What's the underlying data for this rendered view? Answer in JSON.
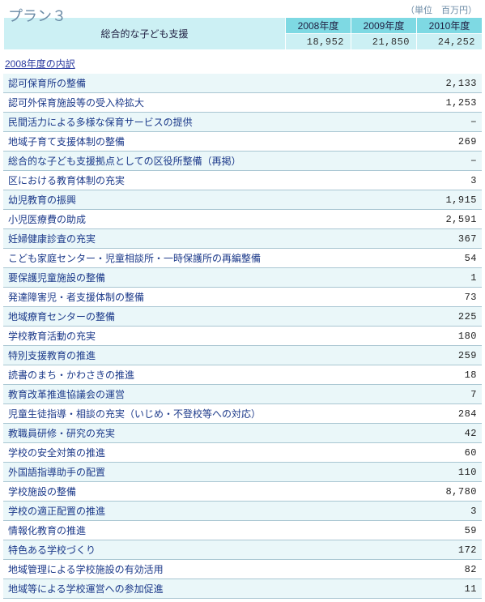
{
  "unit_label": "（単位　百万円）",
  "plan_title": "プラン３",
  "header": {
    "plan_label": "総合的な子ども支援",
    "years": [
      "2008年度",
      "2009年度",
      "2010年度"
    ],
    "totals": [
      "18,952",
      "21,850",
      "24,252"
    ]
  },
  "section_label": "2008年度の内訳",
  "col_widths": {
    "label": 390,
    "value": 201
  },
  "rows": [
    {
      "label": "認可保育所の整備",
      "value": "2,133"
    },
    {
      "label": "認可外保育施設等の受入枠拡大",
      "value": "1,253"
    },
    {
      "label": "民間活力による多様な保育サービスの提供",
      "value": "−"
    },
    {
      "label": "地域子育て支援体制の整備",
      "value": "269"
    },
    {
      "label": "総合的な子ども支援拠点としての区役所整備（再掲）",
      "value": "−"
    },
    {
      "label": "区における教育体制の充実",
      "value": "3"
    },
    {
      "label": "幼児教育の振興",
      "value": "1,915"
    },
    {
      "label": "小児医療費の助成",
      "value": "2,591"
    },
    {
      "label": "妊婦健康診査の充実",
      "value": "367"
    },
    {
      "label": "こども家庭センター・児童相談所・一時保護所の再編整備",
      "value": "54"
    },
    {
      "label": "要保護児童施設の整備",
      "value": "1"
    },
    {
      "label": "発達障害児・者支援体制の整備",
      "value": "73"
    },
    {
      "label": "地域療育センターの整備",
      "value": "225"
    },
    {
      "label": "学校教育活動の充実",
      "value": "180"
    },
    {
      "label": "特別支援教育の推進",
      "value": "259"
    },
    {
      "label": "読書のまち・かわさきの推進",
      "value": "18"
    },
    {
      "label": "教育改革推進協議会の運営",
      "value": "7"
    },
    {
      "label": "児童生徒指導・相談の充実（いじめ・不登校等への対応）",
      "value": "284"
    },
    {
      "label": "教職員研修・研究の充実",
      "value": "42"
    },
    {
      "label": "学校の安全対策の推進",
      "value": "60"
    },
    {
      "label": "外国語指導助手の配置",
      "value": "110"
    },
    {
      "label": "学校施設の整備",
      "value": "8,780"
    },
    {
      "label": "学校の適正配置の推進",
      "value": "3"
    },
    {
      "label": "情報化教育の推進",
      "value": "59"
    },
    {
      "label": "特色ある学校づくり",
      "value": "172"
    },
    {
      "label": "地域管理による学校施設の有効活用",
      "value": "82"
    },
    {
      "label": "地域等による学校運営への参加促進",
      "value": "11"
    }
  ]
}
